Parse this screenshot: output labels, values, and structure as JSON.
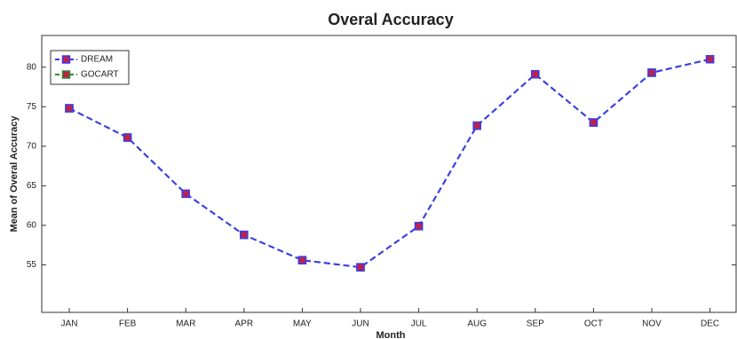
{
  "chart_data": {
    "type": "line",
    "title": "Overal Accuracy",
    "x_label": "Month",
    "y_label": "Mean of Overal Accuracy",
    "categories": [
      "JAN",
      "FEB",
      "MAR",
      "APR",
      "MAY",
      "JUN",
      "JUL",
      "AUG",
      "SEP",
      "OCT",
      "NOV",
      "DEC"
    ],
    "series": [
      {
        "name": "DREAM",
        "color": "#3b3bf0",
        "values": [
          74.8,
          71.1,
          64.0,
          58.8,
          55.6,
          54.7,
          59.9,
          72.6,
          79.1,
          73.0,
          79.3,
          81.0
        ]
      },
      {
        "name": "GOCART",
        "color": "#2e8b2e",
        "values": [
          74.8,
          71.1,
          64.0,
          58.8,
          55.6,
          54.7,
          59.9,
          72.6,
          79.1,
          73.0,
          79.3,
          81.0
        ]
      }
    ],
    "ylim": [
      49,
      84
    ],
    "yticks": [
      55,
      60,
      65,
      70,
      75,
      80
    ],
    "legend": "upper-left"
  }
}
